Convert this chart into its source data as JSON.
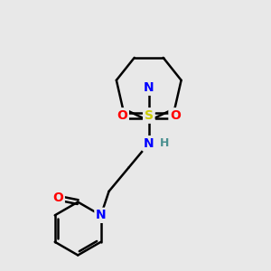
{
  "background_color": "#e8e8e8",
  "bond_color": "#000000",
  "bond_width": 1.8,
  "atom_colors": {
    "N": "#0000ff",
    "O": "#ff0000",
    "S": "#cccc00",
    "H": "#4a9090",
    "C": "#000000"
  },
  "font_size_atoms": 10,
  "font_size_H": 9,
  "figsize": [
    3.0,
    3.0
  ],
  "dpi": 100
}
